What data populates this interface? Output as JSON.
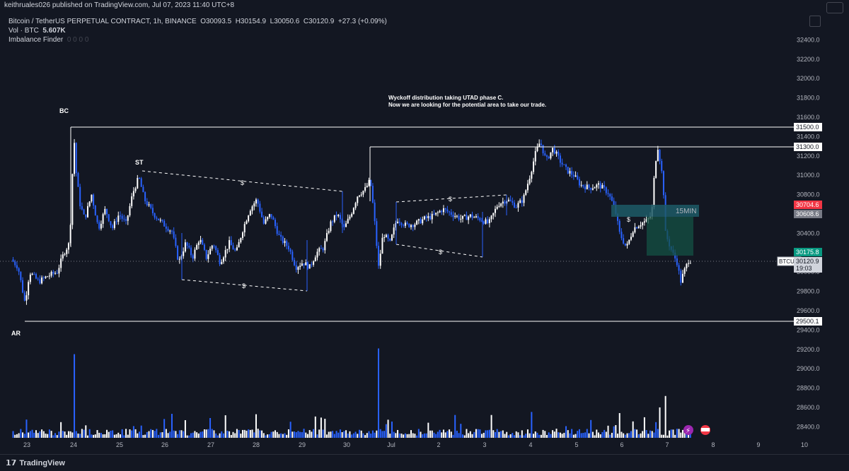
{
  "header": {
    "publish_line": "keithruales026 published on TradingView.com, Jul 07, 2023 11:40 UTC+8"
  },
  "legend": {
    "symbol_line": "Bitcoin / TetherUS PERPETUAL CONTRACT, 1h, BINANCE",
    "open": "O30093.5",
    "high": "H30154.9",
    "low": "L30050.6",
    "close": "C30120.9",
    "change": "+27.3 (+0.09%)",
    "vol_label": "Vol · BTC",
    "vol_value": "5.607K",
    "indicator_label": "Imbalance Finder",
    "indicator_values": "0  0  0  0"
  },
  "annotations": {
    "note_line1": "Wyckoff distribution taking UTAD phase C.",
    "note_line2": "Now we are looking for the potential area to take our trade.",
    "bc": "BC",
    "st": "ST",
    "ar": "AR",
    "dollar": "$",
    "zone_label": "15MIN"
  },
  "price_badges": {
    "level_31500": "31500.0",
    "level_31300": "31300.0",
    "zone_top": "30704.6",
    "zone_bottom": "30608.6",
    "pos_price": "30175.8",
    "symbol_tag": "BTCUSDT.P",
    "last_price": "30120.9",
    "countdown": "19:03",
    "level_29500": "29500.1"
  },
  "colors": {
    "background": "#131722",
    "up_candle": "#ffffff",
    "down_candle": "#2962ff",
    "grid_text": "#b2b5be",
    "zone_red": "#f23645",
    "zone_gray": "#787b86",
    "pos_green": "#089981",
    "zone_fill": "#1d5a66"
  },
  "footer": {
    "brand": "TradingView",
    "logo_icon": "tradingview-logo-icon"
  },
  "chart_data": {
    "type": "candlestick",
    "ylim": [
      28300,
      32600
    ],
    "y_ticks": [
      32400,
      32200,
      32000,
      31800,
      31600,
      31400,
      31200,
      31000,
      30800,
      30600,
      30400,
      30200,
      30000,
      29800,
      29600,
      29400,
      29200,
      29000,
      28800,
      28600,
      28400
    ],
    "y_tick_labels": [
      "32400.0",
      "32200.0",
      "32000.0",
      "31800.0",
      "31600.0",
      "31400.0",
      "31200.0",
      "31000.0",
      "30800.0",
      "30600.0",
      "30400.0",
      "30200.0",
      "30000.0",
      "29800.0",
      "29600.0",
      "29400.0",
      "29200.0",
      "29000.0",
      "28800.0",
      "28600.0",
      "28400.0"
    ],
    "x_tick_labels": [
      "23",
      "24",
      "25",
      "26",
      "27",
      "28",
      "29",
      "30",
      "Jul",
      "2",
      "3",
      "4",
      "5",
      "6",
      "7",
      "8",
      "9",
      "10"
    ],
    "levels": [
      31500.0,
      31300.0,
      29500.1
    ],
    "zone": [
      30608.6,
      30704.6
    ],
    "last_price": 30120.9,
    "price_path": [
      [
        22.7,
        30130
      ],
      [
        22.85,
        30050
      ],
      [
        23.0,
        29680
      ],
      [
        23.1,
        30000
      ],
      [
        23.3,
        29900
      ],
      [
        23.5,
        29960
      ],
      [
        23.7,
        30000
      ],
      [
        23.85,
        30200
      ],
      [
        23.97,
        30300
      ],
      [
        24.02,
        30800
      ],
      [
        24.06,
        31450
      ],
      [
        24.12,
        31000
      ],
      [
        24.2,
        30700
      ],
      [
        24.3,
        30550
      ],
      [
        24.45,
        30800
      ],
      [
        24.6,
        30450
      ],
      [
        24.75,
        30650
      ],
      [
        24.9,
        30450
      ],
      [
        25.05,
        30600
      ],
      [
        25.2,
        30500
      ],
      [
        25.35,
        30820
      ],
      [
        25.48,
        30980
      ],
      [
        25.6,
        30750
      ],
      [
        25.8,
        30600
      ],
      [
        26.0,
        30500
      ],
      [
        26.2,
        30420
      ],
      [
        26.35,
        30100
      ],
      [
        26.5,
        30300
      ],
      [
        26.65,
        30150
      ],
      [
        26.8,
        30350
      ],
      [
        26.95,
        30150
      ],
      [
        27.1,
        30300
      ],
      [
        27.25,
        30100
      ],
      [
        27.45,
        30300
      ],
      [
        27.6,
        30200
      ],
      [
        27.75,
        30450
      ],
      [
        27.9,
        30650
      ],
      [
        28.05,
        30750
      ],
      [
        28.2,
        30500
      ],
      [
        28.35,
        30600
      ],
      [
        28.55,
        30350
      ],
      [
        28.75,
        30250
      ],
      [
        28.9,
        30050
      ],
      [
        29.05,
        30100
      ],
      [
        29.2,
        30050
      ],
      [
        29.35,
        30200
      ],
      [
        29.5,
        30250
      ],
      [
        29.65,
        30500
      ],
      [
        29.8,
        30600
      ],
      [
        29.95,
        30450
      ],
      [
        30.1,
        30600
      ],
      [
        30.25,
        30800
      ],
      [
        30.4,
        30850
      ],
      [
        30.52,
        30950
      ],
      [
        30.6,
        30600
      ],
      [
        30.7,
        30050
      ],
      [
        30.8,
        30400
      ],
      [
        30.95,
        30300
      ],
      [
        31.1,
        30550
      ],
      [
        31.3,
        30480
      ],
      [
        31.5,
        30500
      ],
      [
        31.7,
        30550
      ],
      [
        31.9,
        30580
      ],
      [
        32.1,
        30650
      ],
      [
        32.3,
        30600
      ],
      [
        32.5,
        30550
      ],
      [
        32.7,
        30580
      ],
      [
        32.9,
        30550
      ],
      [
        33.1,
        30500
      ],
      [
        33.3,
        30700
      ],
      [
        33.5,
        30750
      ],
      [
        33.7,
        30680
      ],
      [
        33.85,
        30750
      ],
      [
        34.0,
        31000
      ],
      [
        34.12,
        31230
      ],
      [
        34.22,
        31350
      ],
      [
        34.35,
        31150
      ],
      [
        34.5,
        31280
      ],
      [
        34.65,
        31150
      ],
      [
        34.8,
        31050
      ],
      [
        34.95,
        31000
      ],
      [
        35.1,
        30900
      ],
      [
        35.3,
        30870
      ],
      [
        35.5,
        30900
      ],
      [
        35.7,
        30820
      ],
      [
        35.85,
        30650
      ],
      [
        35.95,
        30400
      ],
      [
        36.1,
        30250
      ],
      [
        36.25,
        30450
      ],
      [
        36.4,
        30500
      ],
      [
        36.55,
        30530
      ],
      [
        36.65,
        30600
      ],
      [
        36.72,
        31100
      ],
      [
        36.78,
        31300
      ],
      [
        36.85,
        31100
      ],
      [
        36.9,
        30900
      ],
      [
        36.95,
        30400
      ],
      [
        37.02,
        30300
      ],
      [
        37.1,
        30200
      ],
      [
        37.2,
        30100
      ],
      [
        37.28,
        29900
      ],
      [
        37.35,
        30000
      ],
      [
        37.45,
        30120
      ]
    ],
    "volume_ylim": [
      0,
      2600
    ],
    "volume_spikes": [
      [
        24.02,
        2200
      ],
      [
        30.65,
        2350
      ],
      [
        36.9,
        1100
      ],
      [
        36.78,
        800
      ],
      [
        28.0,
        620
      ],
      [
        33.1,
        600
      ],
      [
        27.0,
        520
      ],
      [
        29.3,
        560
      ],
      [
        34.0,
        680
      ],
      [
        35.9,
        650
      ],
      [
        23.0,
        480
      ]
    ]
  }
}
